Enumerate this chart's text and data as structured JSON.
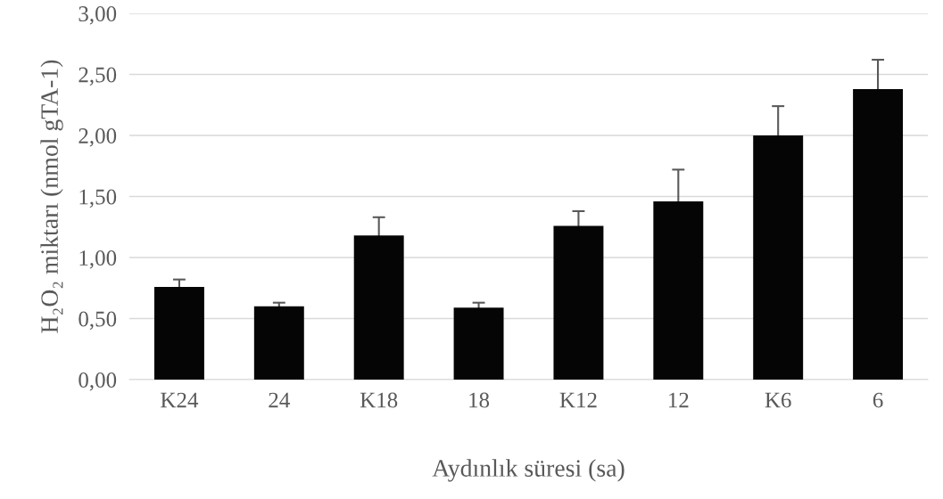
{
  "chart_data": {
    "type": "bar",
    "xlabel": "Aydınlık süresi (sa)",
    "ylabel": "H₂O₂ miktarı (nmol gTA-1)",
    "categories": [
      "K24",
      "24",
      "K18",
      "18",
      "K12",
      "12",
      "K6",
      "6"
    ],
    "values": [
      0.76,
      0.6,
      1.18,
      0.59,
      1.26,
      1.46,
      2.0,
      2.38
    ],
    "errors": [
      0.06,
      0.03,
      0.15,
      0.04,
      0.12,
      0.26,
      0.24,
      0.24
    ],
    "color": "#050505",
    "ylim": [
      0,
      3
    ],
    "yticks": [
      {
        "value": 0,
        "label": "0,00"
      },
      {
        "value": 0.5,
        "label": "0,50"
      },
      {
        "value": 1,
        "label": "1,00"
      },
      {
        "value": 1.5,
        "label": "1,50"
      },
      {
        "value": 2,
        "label": "2,00"
      },
      {
        "value": 2.5,
        "label": "2,50"
      },
      {
        "value": 3,
        "label": "3,00"
      }
    ],
    "grid": "y"
  }
}
